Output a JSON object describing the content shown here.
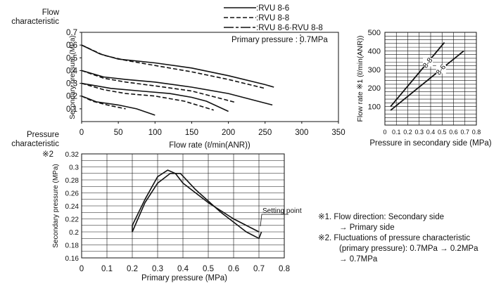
{
  "labels": {
    "flow_characteristic": [
      "Flow",
      "characteristic"
    ],
    "pressure_characteristic": [
      "Pressure",
      "characteristic"
    ],
    "note_mark_2": "※2"
  },
  "legend": {
    "rvu86": ":RVU 8-6",
    "rvu88": ":RVU 8-8",
    "both": ":RVU 8-6·RVU 8-8"
  },
  "notes": [
    "※1. Flow direction: Secondary side",
    "→ Primary side",
    "※2. Fluctuations of pressure characteristic",
    "(primary pressure): 0.7MPa → 0.2MPa",
    "→ 0.7MPa"
  ],
  "colors": {
    "line": "#111111",
    "grid": "#111111",
    "background": "#ffffff"
  },
  "chart_data": [
    {
      "id": "flow-characteristic",
      "type": "line",
      "xlabel": "Flow rate (ℓ/min(ANR))",
      "ylabel": "Secondary pressure (MPa)",
      "xlim": [
        0,
        350
      ],
      "ylim": [
        0,
        0.7
      ],
      "xticks": [
        0,
        50,
        100,
        150,
        200,
        250,
        300,
        350
      ],
      "yticks": [
        0.1,
        0.2,
        0.3,
        0.4,
        0.5,
        0.6,
        0.7
      ],
      "grid": false,
      "annotation": "Primary pressure : 0.7MPa",
      "series": [
        {
          "name": ":RVU 8-6",
          "style": "solid",
          "x": [
            0,
            25,
            50,
            100,
            150,
            200,
            250,
            262
          ],
          "y": [
            0.6,
            0.53,
            0.49,
            0.46,
            0.42,
            0.36,
            0.29,
            0.27
          ]
        },
        {
          "name": ":RVU 8-8",
          "style": "dashed",
          "x": [
            0,
            30,
            60,
            100,
            150,
            200,
            250
          ],
          "y": [
            0.6,
            0.52,
            0.48,
            0.44,
            0.39,
            0.33,
            0.26
          ]
        },
        {
          "name": ":RVU 8-6",
          "style": "solid",
          "x": [
            0,
            30,
            60,
            100,
            150,
            200,
            240,
            260
          ],
          "y": [
            0.4,
            0.35,
            0.33,
            0.31,
            0.27,
            0.22,
            0.16,
            0.13
          ]
        },
        {
          "name": ":RVU 8-8",
          "style": "dashed",
          "x": [
            0,
            30,
            60,
            100,
            150,
            190,
            210
          ],
          "y": [
            0.4,
            0.34,
            0.31,
            0.28,
            0.24,
            0.18,
            0.15
          ]
        },
        {
          "name": ":RVU 8-6",
          "style": "solid",
          "x": [
            0,
            40,
            80,
            120,
            150,
            170,
            200
          ],
          "y": [
            0.3,
            0.26,
            0.24,
            0.22,
            0.19,
            0.16,
            0.08
          ]
        },
        {
          "name": ":RVU 8-8",
          "style": "dashed",
          "x": [
            0,
            30,
            60,
            100,
            140,
            180
          ],
          "y": [
            0.3,
            0.25,
            0.22,
            0.2,
            0.16,
            0.09
          ]
        },
        {
          "name": ":RVU 8-6",
          "style": "solid",
          "x": [
            0,
            20,
            50,
            75,
            100
          ],
          "y": [
            0.2,
            0.155,
            0.13,
            0.1,
            0.05
          ]
        },
        {
          "name": ":RVU 8-8",
          "style": "dashed",
          "x": [
            0,
            15,
            35,
            60
          ],
          "y": [
            0.2,
            0.16,
            0.13,
            0.1
          ]
        }
      ]
    },
    {
      "id": "flow-rate-vs-pressure",
      "type": "line",
      "xlabel": "Pressure in secondary side (MPa)",
      "ylabel": "Flow rate ※1 (ℓ/min(ANR))",
      "xlim": [
        0,
        0.8
      ],
      "ylim": [
        0,
        500
      ],
      "xticks": [
        "0",
        "0.1",
        "0.2",
        "0.3",
        "0.4",
        "0.5",
        "0.6",
        "0.7",
        "0.8"
      ],
      "yticks": [
        100,
        200,
        300,
        400,
        500
      ],
      "grid": true,
      "series": [
        {
          "name": "8-8",
          "x": [
            0.05,
            0.52
          ],
          "y": [
            100,
            445
          ]
        },
        {
          "name": "8-6",
          "x": [
            0.05,
            0.69
          ],
          "y": [
            80,
            400
          ]
        }
      ]
    },
    {
      "id": "pressure-characteristic",
      "type": "line",
      "xlabel": "Primary pressure (MPa)",
      "ylabel": "Secondary pressure (MPa)",
      "xlim": [
        0,
        0.8
      ],
      "ylim": [
        0.16,
        0.32
      ],
      "xticks": [
        "0",
        "0.1",
        "0.2",
        "0.3",
        "0.4",
        "0.5",
        "0.6",
        "0.7",
        "0.8"
      ],
      "yticks": [
        "0.16",
        "0.18",
        "0.2",
        "0.22",
        "0.24",
        "0.26",
        "0.28",
        "0.3",
        "0.32"
      ],
      "grid": true,
      "annotation": "Setting point",
      "series": [
        {
          "style": "solid",
          "x": [
            0.7,
            0.6,
            0.5,
            0.4,
            0.37,
            0.34,
            0.3,
            0.25,
            0.2,
            0.2
          ],
          "y": [
            0.2,
            0.22,
            0.245,
            0.275,
            0.29,
            0.295,
            0.285,
            0.25,
            0.21,
            0.2
          ]
        },
        {
          "style": "solid",
          "x": [
            0.2,
            0.25,
            0.3,
            0.35,
            0.39,
            0.45,
            0.55,
            0.65,
            0.7,
            0.71
          ],
          "y": [
            0.2,
            0.245,
            0.275,
            0.29,
            0.29,
            0.265,
            0.23,
            0.2,
            0.19,
            0.2
          ]
        }
      ]
    }
  ]
}
